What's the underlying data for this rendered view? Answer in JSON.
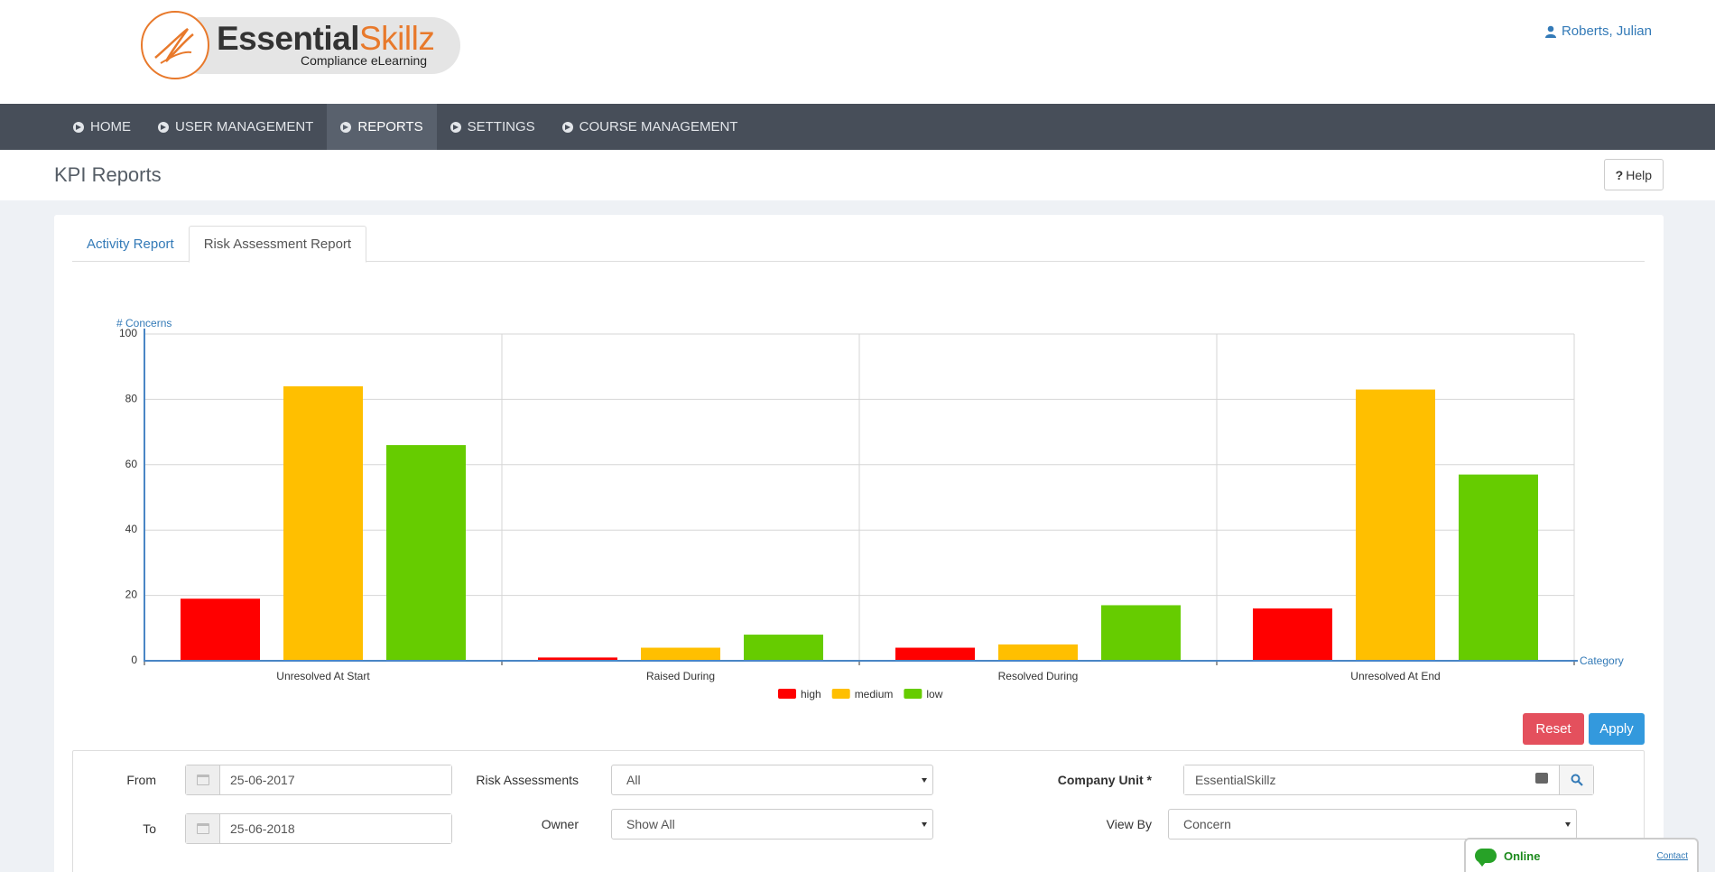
{
  "header": {
    "brand_part1": "Essential",
    "brand_part2": "Skillz",
    "tagline": "Compliance eLearning",
    "user_name": "Roberts, Julian"
  },
  "nav": {
    "items": [
      {
        "label": "HOME",
        "active": false
      },
      {
        "label": "USER MANAGEMENT",
        "active": false
      },
      {
        "label": "REPORTS",
        "active": true
      },
      {
        "label": "SETTINGS",
        "active": false
      },
      {
        "label": "COURSE MANAGEMENT",
        "active": false
      }
    ]
  },
  "page": {
    "title": "KPI Reports",
    "help_label": "Help",
    "help_mark": "?"
  },
  "tabs": [
    {
      "label": "Activity Report",
      "active": false
    },
    {
      "label": "Risk Assessment Report",
      "active": true
    }
  ],
  "chart_data": {
    "type": "bar",
    "ylabel": "# Concerns",
    "xlabel": "Category",
    "ylim": [
      0,
      100
    ],
    "yticks": [
      0,
      20,
      40,
      60,
      80,
      100
    ],
    "categories": [
      "Unresolved At Start",
      "Raised During",
      "Resolved During",
      "Unresolved At End"
    ],
    "series": [
      {
        "name": "high",
        "color": "#ff0000",
        "values": [
          19,
          1,
          4,
          16
        ]
      },
      {
        "name": "medium",
        "color": "#ffbf00",
        "values": [
          84,
          4,
          5,
          83
        ]
      },
      {
        "name": "low",
        "color": "#66cc00",
        "values": [
          66,
          8,
          17,
          57
        ]
      }
    ],
    "legend": "bottom",
    "grid": true
  },
  "actions": {
    "reset_label": "Reset",
    "apply_label": "Apply"
  },
  "filters": {
    "from_label": "From",
    "from_value": "25-06-2017",
    "to_label": "To",
    "to_value": "25-06-2018",
    "risk_label": "Risk Assessments",
    "risk_value": "All",
    "owner_label": "Owner",
    "owner_value": "Show All",
    "unit_label": "Company Unit *",
    "unit_value": "EssentialSkillz",
    "viewby_label": "View By",
    "viewby_value": "Concern"
  },
  "chat": {
    "status": "Online",
    "contact": "Contact"
  }
}
